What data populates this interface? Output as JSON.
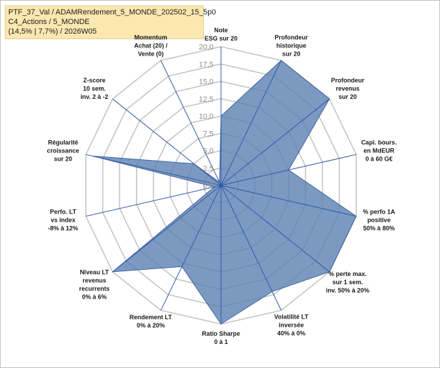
{
  "title": {
    "line1": "PTF_37_Val / ADAMRendement_5_MONDE_202502_15_5p0",
    "line2": "C4_Actions / 5_MONDE",
    "line3": "(14,5% | 7,7%) / 2026W05"
  },
  "chart_data": {
    "type": "radar",
    "rlim": [
      0,
      20
    ],
    "ticks": [
      "0,0",
      "2,5",
      "5,0",
      "7,5",
      "10,0",
      "12,5",
      "15,0",
      "17,5",
      "20,0"
    ],
    "axes": [
      [
        "Note",
        "ESG sur 20"
      ],
      [
        "Profondeur",
        "historique",
        "sur 20"
      ],
      [
        "Profondeur",
        "revenus",
        "sur 20"
      ],
      [
        "Capi. bours.",
        "en MdEUR",
        "0 à 60 G€"
      ],
      [
        "% perfo 1A",
        "positive",
        "50% à 80%"
      ],
      [
        "% perte max.",
        "sur 1 sem.",
        "inv. 50% à 20%"
      ],
      [
        "Volatilité LT",
        "inversée",
        "40% à 0%"
      ],
      [
        "Ratio Sharpe",
        "0 à 1"
      ],
      [
        "Rendement LT",
        "0% à 20%"
      ],
      [
        "Niveau LT",
        "revenus",
        "recurrents",
        "0% à 6%"
      ],
      [
        "Perfo. LT",
        "vs index",
        "-8% à 12%"
      ],
      [
        "Régularité",
        "croissance",
        "sur 20"
      ],
      [
        "Z-score",
        "10 sem.",
        "inv. 2 à -2"
      ],
      [
        "Momentum",
        "Achat (20) /",
        "Vente (0)"
      ]
    ],
    "highlighted_label_line": "Momentum",
    "series": [
      {
        "name": "PTF_37_Val",
        "values": [
          10,
          20,
          20,
          10,
          20,
          20,
          17,
          20,
          13,
          20,
          1,
          19,
          5,
          0.5
        ]
      }
    ],
    "colors": {
      "fill": "#5b80b3",
      "fill_opacity": 0.8,
      "outline": "#3f64a0",
      "axis": "#2f5aa8",
      "grid": "#c4c4c4",
      "title_bg": "#fbe7b0",
      "highlight_text": "#a8a8a8"
    }
  }
}
